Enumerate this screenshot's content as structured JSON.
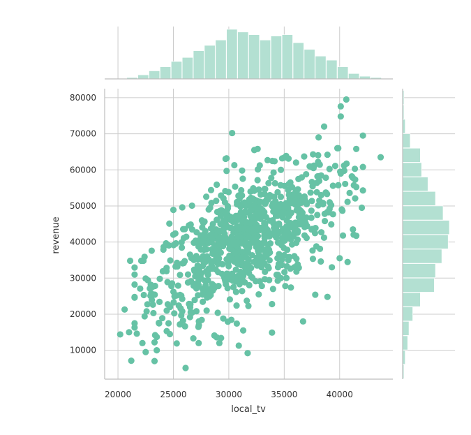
{
  "chart_data": {
    "type": "scatter",
    "subtype": "jointplot",
    "title": "",
    "xlabel": "local_tv",
    "ylabel": "revenue",
    "xlim": [
      18800,
      44800
    ],
    "ylim": [
      2000,
      82500
    ],
    "xticks": [
      "20000",
      "25000",
      "30000",
      "35000",
      "40000"
    ],
    "yticks": [
      "10000",
      "20000",
      "30000",
      "40000",
      "50000",
      "60000",
      "70000",
      "80000"
    ],
    "grid": true,
    "color": "#66c2a5",
    "hist_color": "#b3e0d2",
    "points": [
      [
        30300,
        70200
      ],
      [
        40600,
        79500
      ],
      [
        40100,
        77600
      ],
      [
        40100,
        74800
      ],
      [
        38600,
        72000
      ],
      [
        38100,
        69000
      ],
      [
        42100,
        69500
      ],
      [
        43700,
        63500
      ],
      [
        37600,
        64300
      ],
      [
        36800,
        63700
      ],
      [
        38900,
        64200
      ],
      [
        35000,
        63400
      ],
      [
        29800,
        63200
      ],
      [
        32300,
        65500
      ],
      [
        32600,
        65800
      ],
      [
        33500,
        62700
      ],
      [
        34700,
        60000
      ],
      [
        30500,
        61300
      ],
      [
        29800,
        59700
      ],
      [
        31200,
        59800
      ],
      [
        39600,
        61100
      ],
      [
        40400,
        61200
      ],
      [
        40100,
        59000
      ],
      [
        42100,
        60800
      ],
      [
        38000,
        58200
      ],
      [
        39400,
        55600
      ],
      [
        41400,
        57300
      ],
      [
        42100,
        54300
      ],
      [
        40500,
        56100
      ],
      [
        40900,
        53600
      ],
      [
        41400,
        52100
      ],
      [
        42000,
        49500
      ],
      [
        25000,
        48900
      ],
      [
        25800,
        49600
      ],
      [
        28400,
        54400
      ],
      [
        29300,
        52900
      ],
      [
        31200,
        50600
      ],
      [
        33700,
        53000
      ],
      [
        36300,
        52000
      ],
      [
        39100,
        51000
      ],
      [
        39400,
        47700
      ],
      [
        41200,
        43500
      ],
      [
        40300,
        41800
      ],
      [
        40000,
        35500
      ],
      [
        39300,
        33000
      ],
      [
        38300,
        34600
      ],
      [
        37900,
        38800
      ],
      [
        36100,
        31800
      ],
      [
        38900,
        24800
      ],
      [
        35600,
        27400
      ],
      [
        34700,
        30000
      ],
      [
        32700,
        25500
      ],
      [
        31200,
        26400
      ],
      [
        33900,
        22800
      ],
      [
        30700,
        22400
      ],
      [
        29500,
        18800
      ],
      [
        31300,
        15500
      ],
      [
        33900,
        14900
      ],
      [
        28700,
        14100
      ],
      [
        28900,
        13600
      ],
      [
        29300,
        13400
      ],
      [
        30900,
        11300
      ],
      [
        31700,
        9200
      ],
      [
        24400,
        21000
      ],
      [
        24000,
        18900
      ],
      [
        24700,
        22000
      ],
      [
        25800,
        20800
      ],
      [
        26500,
        19200
      ],
      [
        24400,
        15300
      ],
      [
        23500,
        13700
      ],
      [
        23300,
        12200
      ],
      [
        23500,
        10000
      ],
      [
        22500,
        9500
      ],
      [
        21200,
        7100
      ],
      [
        23300,
        7000
      ],
      [
        26100,
        5100
      ],
      [
        20200,
        14400
      ],
      [
        21000,
        15000
      ],
      [
        21700,
        14600
      ],
      [
        20600,
        21300
      ],
      [
        22300,
        34800
      ],
      [
        22400,
        35900
      ],
      [
        21100,
        34800
      ],
      [
        22500,
        29900
      ],
      [
        22700,
        29400
      ],
      [
        23000,
        25800
      ],
      [
        23200,
        20300
      ],
      [
        24100,
        37900
      ],
      [
        25200,
        33200
      ],
      [
        26900,
        32000
      ],
      [
        28000,
        38000
      ],
      [
        27700,
        45300
      ],
      [
        29500,
        46000
      ],
      [
        27100,
        42700
      ],
      [
        26500,
        36500
      ],
      [
        26900,
        28400
      ],
      [
        28400,
        27100
      ],
      [
        28000,
        21000
      ],
      [
        27300,
        17000
      ],
      [
        26800,
        13300
      ],
      [
        25300,
        11900
      ],
      [
        37800,
        25400
      ],
      [
        36700,
        18000
      ],
      [
        35100,
        27800
      ]
    ],
    "x_hist": {
      "bin_edges": [
        19800,
        20800,
        21800,
        22800,
        23800,
        24800,
        25800,
        26800,
        27800,
        28800,
        29800,
        30800,
        31800,
        32800,
        33800,
        34800,
        35800,
        36800,
        37800,
        38800,
        39800,
        40800,
        41800,
        42800,
        43800
      ],
      "counts": [
        0,
        1,
        3,
        6,
        9,
        13,
        16,
        21,
        25,
        29,
        37,
        35,
        33,
        29,
        32,
        33,
        27,
        22,
        17,
        14,
        9,
        4,
        2,
        1
      ]
    },
    "y_hist": {
      "bin_edges": [
        2000,
        6000,
        10000,
        14000,
        18000,
        22000,
        26000,
        30000,
        34000,
        38000,
        42000,
        46000,
        50000,
        54000,
        58000,
        62000,
        66000,
        70000,
        74000,
        78000,
        82000
      ],
      "counts": [
        1,
        2,
        4,
        5,
        8,
        14,
        25,
        26,
        31,
        36,
        37,
        32,
        26,
        20,
        15,
        14,
        6,
        2,
        1,
        1
      ]
    }
  }
}
